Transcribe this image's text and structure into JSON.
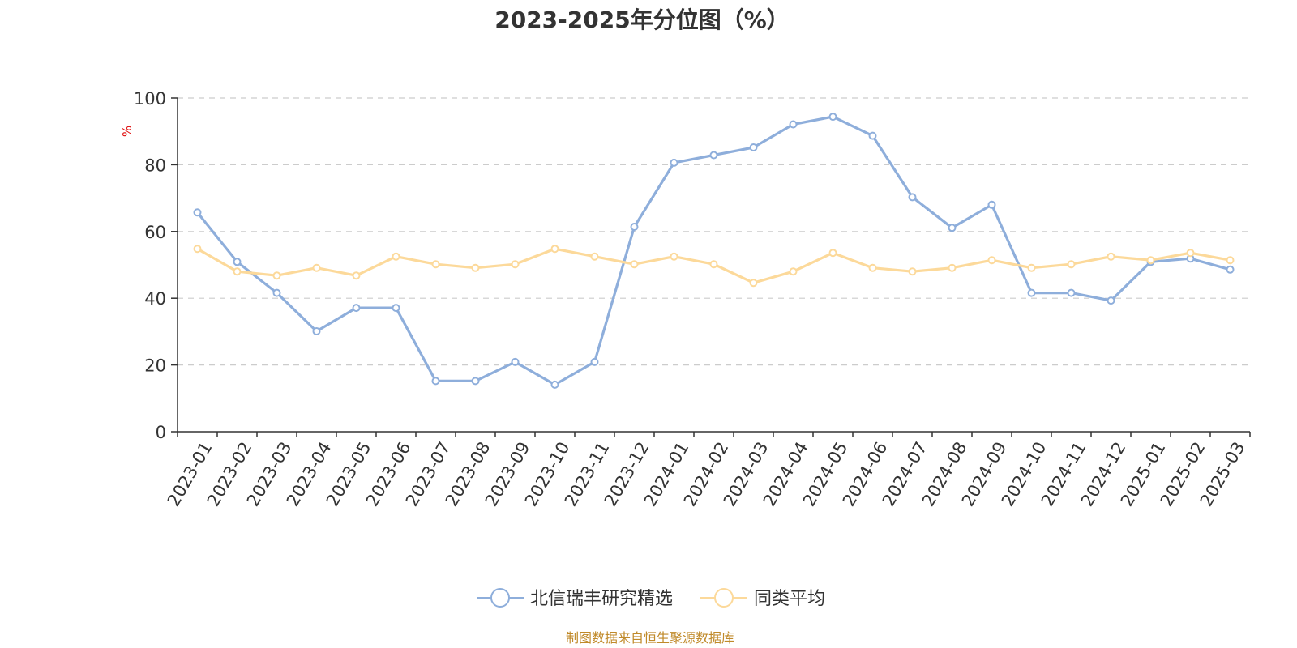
{
  "chart_data": {
    "type": "line",
    "title": "2023-2025年分位图（%）",
    "ylabel": "%",
    "xlabel": "",
    "ylim": [
      0,
      100
    ],
    "yticks": [
      "0",
      "20",
      "40",
      "60",
      "80",
      "100"
    ],
    "grid": true,
    "legend_position": "bottom",
    "categories": [
      "2023-01",
      "2023-02",
      "2023-03",
      "2023-04",
      "2023-05",
      "2023-06",
      "2023-07",
      "2023-08",
      "2023-09",
      "2023-10",
      "2023-11",
      "2023-12",
      "2024-01",
      "2024-02",
      "2024-03",
      "2024-04",
      "2024-05",
      "2024-06",
      "2024-07",
      "2024-08",
      "2024-09",
      "2024-10",
      "2024-11",
      "2024-12",
      "2025-01",
      "2025-02",
      "2025-03"
    ],
    "series": [
      {
        "name": "北信瑞丰研究精选",
        "color": "#8eaedb",
        "values": [
          65.7,
          50.9,
          41.6,
          30.1,
          37.1,
          37.1,
          15.2,
          15.2,
          20.9,
          14.1,
          20.9,
          61.4,
          80.6,
          82.9,
          85.2,
          92.1,
          94.4,
          88.7,
          70.3,
          61.1,
          68.0,
          41.6,
          41.6,
          39.3,
          50.9,
          51.9,
          48.6
        ]
      },
      {
        "name": "同类平均",
        "color": "#fcd99a",
        "values": [
          54.8,
          48.0,
          46.8,
          49.1,
          46.8,
          52.5,
          50.2,
          49.1,
          50.2,
          54.8,
          52.5,
          50.2,
          52.5,
          50.2,
          44.6,
          48.0,
          53.6,
          49.1,
          48.0,
          49.1,
          51.4,
          49.1,
          50.2,
          52.5,
          51.4,
          53.6,
          51.4
        ]
      }
    ]
  },
  "source_text": "制图数据来自恒生聚源数据库"
}
